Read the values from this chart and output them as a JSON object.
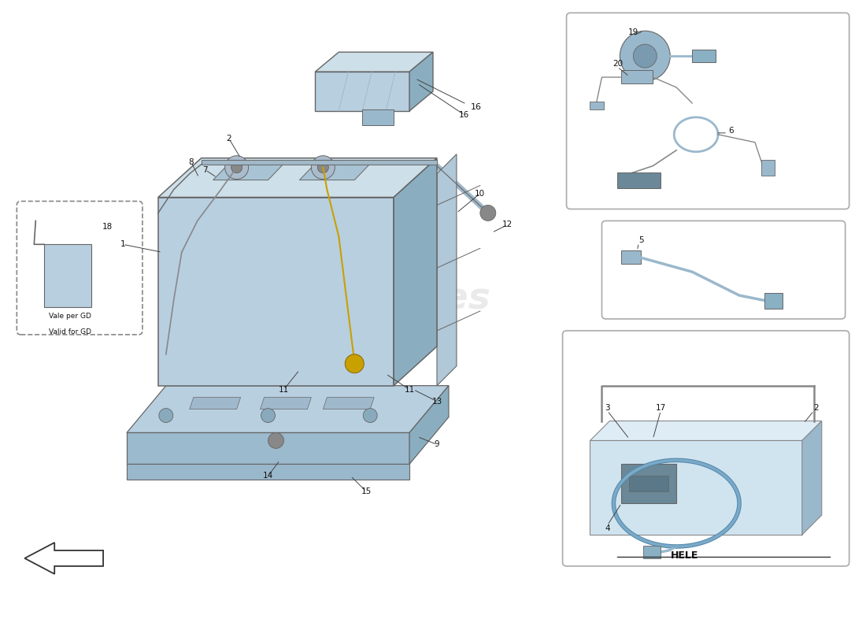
{
  "bg_color": "#ffffff",
  "bat_face_color": "#b8cfe0",
  "bat_top_color": "#cddfe8",
  "bat_right_color": "#8aaec0",
  "bat_dark": "#7a9cb0",
  "tray_top_color": "#b8cfe0",
  "tray_right_color": "#8aaec0",
  "tray_front_color": "#9bbace",
  "line_color": "#444444",
  "box_edge": "#666666",
  "part_label_color": "#111111",
  "watermark_color": "#c8c8c8",
  "watermark_subcolor": "#c8a040",
  "hele_label": "HELE",
  "vale_line1": "Vale per GD",
  "vale_line2": "Valid for GD"
}
